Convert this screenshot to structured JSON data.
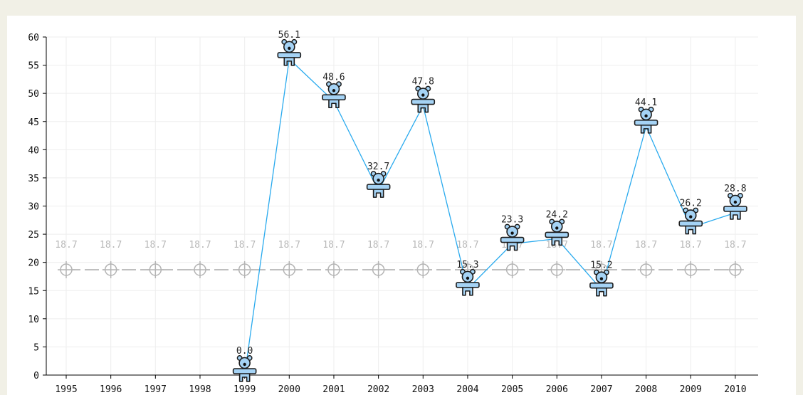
{
  "chart_data": {
    "type": "line",
    "title": "",
    "xlabel": "",
    "ylabel": "",
    "ylim": [
      0,
      60
    ],
    "yticks": [
      0,
      5,
      10,
      15,
      20,
      25,
      30,
      35,
      40,
      45,
      50,
      55,
      60
    ],
    "categories": [
      "1995",
      "1996",
      "1997",
      "1998",
      "1999",
      "2000",
      "2001",
      "2002",
      "2003",
      "2004",
      "2005",
      "2006",
      "2007",
      "2008",
      "2009",
      "2010"
    ],
    "grid": true,
    "series": [
      {
        "values": [
          null,
          null,
          null,
          null,
          0.0,
          56.1,
          48.6,
          32.7,
          47.8,
          15.3,
          23.3,
          24.2,
          15.2,
          44.1,
          26.2,
          28.8
        ],
        "labels": [
          null,
          null,
          null,
          null,
          "0.0",
          "56.1",
          "48.6",
          "32.7",
          "47.8",
          "15.3",
          "23.3",
          "24.2",
          "15.2",
          "44.1",
          "26.2",
          "28.8"
        ],
        "color": "#29aaee",
        "marker": "teddy-bear-icon",
        "marker_color": "#a5d3f5"
      },
      {
        "values": [
          18.7,
          18.7,
          18.7,
          18.7,
          18.7,
          18.7,
          18.7,
          18.7,
          18.7,
          18.7,
          18.7,
          18.7,
          18.7,
          18.7,
          18.7,
          18.7
        ],
        "labels": [
          "18.7",
          "18.7",
          "18.7",
          "18.7",
          "18.7",
          "18.7",
          "18.7",
          "18.7",
          "18.7",
          "18.7",
          "18.7",
          "18.7",
          "18.7",
          "18.7",
          "18.7",
          "18.7"
        ],
        "color": "#aaaaaa",
        "line_style": "dashed",
        "marker": "crosshair-circle-icon"
      }
    ]
  }
}
